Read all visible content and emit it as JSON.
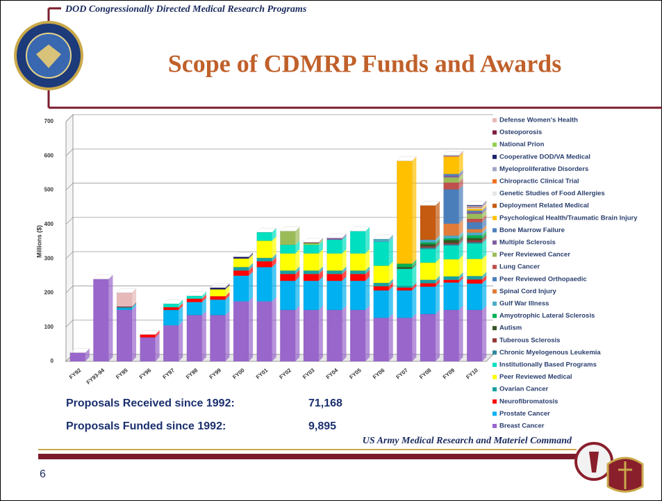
{
  "slide": {
    "header": "DOD Congressionally Directed Medical Research Programs",
    "title": "Scope of CDMRP Funds and Awards",
    "stats": [
      {
        "label": "Proposals Received since 1992:",
        "value": "71,168"
      },
      {
        "label": "Proposals Funded since 1992:",
        "value": "9,895"
      }
    ],
    "footer": "US Army Medical Research and Materiel Command",
    "page_number": "6"
  },
  "chart_data": {
    "type": "stacked_bar",
    "y_label": "Millions ($)",
    "categories": [
      "FY92",
      "FY93-94",
      "FY95",
      "FY96",
      "FY97",
      "FY98",
      "FY99",
      "FY00",
      "FY01",
      "FY02",
      "FY03",
      "FY04",
      "FY05",
      "FY06",
      "FY07",
      "FY08",
      "FY09",
      "FY10"
    ],
    "ylim": [
      0,
      700
    ],
    "yticks": [
      0,
      100,
      200,
      300,
      400,
      500,
      600,
      700
    ],
    "grid": true,
    "legend": "right",
    "series": [
      {
        "name": "Defense Women's Health",
        "color": "#e6b9b8",
        "values": [
          0,
          0,
          40,
          0,
          0,
          0,
          0,
          0,
          0,
          0,
          0,
          0,
          0,
          0,
          0,
          0,
          0,
          0
        ]
      },
      {
        "name": "Osteoporosis",
        "color": "#7f1f3f",
        "values": [
          0,
          0,
          2,
          0,
          0,
          0,
          0,
          0,
          0,
          0,
          2,
          0,
          0,
          0,
          0,
          0,
          0,
          0
        ]
      },
      {
        "name": "National Prion",
        "color": "#92d050",
        "values": [
          0,
          0,
          0,
          0,
          0,
          0,
          0,
          0,
          0,
          0,
          5,
          0,
          0,
          0,
          0,
          0,
          0,
          0
        ]
      },
      {
        "name": "Cooperative DOD/VA Medical",
        "color": "#1f1f6f",
        "values": [
          0,
          0,
          0,
          0,
          0,
          0,
          5,
          5,
          0,
          0,
          0,
          0,
          0,
          0,
          0,
          0,
          0,
          2
        ]
      },
      {
        "name": "Myeloproliferative Disorders",
        "color": "#a6a6c8",
        "values": [
          0,
          0,
          0,
          0,
          0,
          0,
          0,
          0,
          0,
          0,
          0,
          0,
          0,
          0,
          0,
          0,
          3,
          4
        ]
      },
      {
        "name": "Chiropractic Clinical Trial",
        "color": "#f07020",
        "values": [
          0,
          0,
          0,
          0,
          0,
          0,
          0,
          0,
          0,
          0,
          0,
          0,
          0,
          0,
          0,
          0,
          2,
          2
        ]
      },
      {
        "name": "Genetic Studies of Food Allergies",
        "color": "#e6e6e6",
        "values": [
          0,
          0,
          0,
          0,
          0,
          0,
          0,
          0,
          0,
          0,
          0,
          0,
          0,
          0,
          0,
          0,
          0,
          3
        ]
      },
      {
        "name": "Deployment Related Medical",
        "color": "#c55a11",
        "values": [
          0,
          0,
          0,
          0,
          0,
          0,
          0,
          0,
          0,
          0,
          0,
          0,
          0,
          0,
          0,
          100,
          0,
          0
        ]
      },
      {
        "name": "Psychological Health/Traumatic Brain Injury",
        "color": "#ffc000",
        "values": [
          0,
          0,
          0,
          0,
          0,
          0,
          0,
          0,
          0,
          0,
          0,
          0,
          0,
          0,
          300,
          0,
          50,
          5
        ]
      },
      {
        "name": "Bone Marrow Failure",
        "color": "#4f81bd",
        "values": [
          0,
          0,
          0,
          0,
          0,
          0,
          0,
          0,
          0,
          0,
          0,
          0,
          0,
          0,
          0,
          0,
          5,
          4
        ]
      },
      {
        "name": "Multiple Sclerosis",
        "color": "#7f5fa0",
        "values": [
          0,
          0,
          0,
          0,
          0,
          0,
          0,
          0,
          0,
          0,
          0,
          5,
          0,
          0,
          0,
          0,
          5,
          5
        ]
      },
      {
        "name": "Peer Reviewed Cancer",
        "color": "#9bbb59",
        "values": [
          0,
          0,
          0,
          0,
          0,
          0,
          0,
          0,
          0,
          40,
          0,
          0,
          0,
          0,
          0,
          0,
          15,
          15
        ]
      },
      {
        "name": "Lung Cancer",
        "color": "#c0504d",
        "values": [
          0,
          0,
          0,
          0,
          0,
          0,
          0,
          0,
          0,
          0,
          0,
          0,
          0,
          0,
          0,
          0,
          20,
          10
        ]
      },
      {
        "name": "Peer Reviewed Orthopaedic",
        "color": "#4a7ebb",
        "values": [
          0,
          0,
          0,
          0,
          0,
          0,
          0,
          0,
          0,
          0,
          0,
          0,
          0,
          0,
          0,
          0,
          100,
          20
        ]
      },
      {
        "name": "Spinal Cord Injury",
        "color": "#e07b39",
        "values": [
          0,
          0,
          0,
          0,
          0,
          0,
          0,
          0,
          0,
          0,
          0,
          0,
          0,
          0,
          0,
          0,
          35,
          10
        ]
      },
      {
        "name": "Gulf War Illness",
        "color": "#4bacc6",
        "values": [
          0,
          0,
          0,
          0,
          0,
          0,
          0,
          0,
          0,
          0,
          0,
          0,
          0,
          8,
          0,
          8,
          8,
          8
        ]
      },
      {
        "name": "Amyotrophic Lateral Sclerosis",
        "color": "#00b050",
        "values": [
          0,
          0,
          0,
          0,
          0,
          0,
          0,
          0,
          0,
          0,
          0,
          0,
          0,
          0,
          10,
          5,
          5,
          8
        ]
      },
      {
        "name": "Autism",
        "color": "#375623",
        "values": [
          0,
          0,
          0,
          0,
          0,
          0,
          0,
          0,
          0,
          0,
          0,
          0,
          0,
          0,
          5,
          6,
          8,
          6
        ]
      },
      {
        "name": "Tuberous Sclerosis",
        "color": "#953735",
        "values": [
          0,
          0,
          0,
          0,
          0,
          0,
          0,
          0,
          0,
          0,
          0,
          0,
          0,
          0,
          0,
          4,
          4,
          6
        ]
      },
      {
        "name": "Chronic Myelogenous Leukemia",
        "color": "#31859c",
        "values": [
          0,
          0,
          0,
          0,
          0,
          0,
          0,
          0,
          0,
          0,
          0,
          0,
          0,
          0,
          0,
          4,
          4,
          4
        ]
      },
      {
        "name": "Institutionally Based Programs",
        "color": "#00e0c0",
        "values": [
          0,
          0,
          0,
          0,
          10,
          8,
          0,
          0,
          25,
          25,
          25,
          40,
          65,
          70,
          50,
          40,
          40,
          45
        ]
      },
      {
        "name": "Peer Reviewed Medical",
        "color": "#ffff00",
        "values": [
          0,
          0,
          0,
          0,
          0,
          0,
          20,
          25,
          50,
          50,
          50,
          50,
          50,
          50,
          0,
          50,
          50,
          50
        ]
      },
      {
        "name": "Ovarian Cancer",
        "color": "#17a0a0",
        "values": [
          0,
          0,
          3,
          0,
          0,
          0,
          0,
          10,
          10,
          10,
          10,
          10,
          10,
          10,
          5,
          10,
          10,
          10
        ]
      },
      {
        "name": "Neurofibromatosis",
        "color": "#ff0000",
        "values": [
          0,
          0,
          0,
          8,
          8,
          10,
          10,
          15,
          17,
          20,
          20,
          20,
          20,
          12,
          8,
          10,
          8,
          12
        ]
      },
      {
        "name": "Prostate Cancer",
        "color": "#00b0f0",
        "values": [
          0,
          0,
          5,
          0,
          45,
          38,
          45,
          75,
          100,
          85,
          85,
          85,
          85,
          80,
          80,
          80,
          80,
          77
        ]
      },
      {
        "name": "Breast Cancer",
        "color": "#9966cc",
        "values": [
          25,
          240,
          150,
          70,
          105,
          135,
          135,
          175,
          175,
          150,
          150,
          150,
          150,
          127,
          127,
          138,
          150,
          150
        ]
      }
    ]
  }
}
